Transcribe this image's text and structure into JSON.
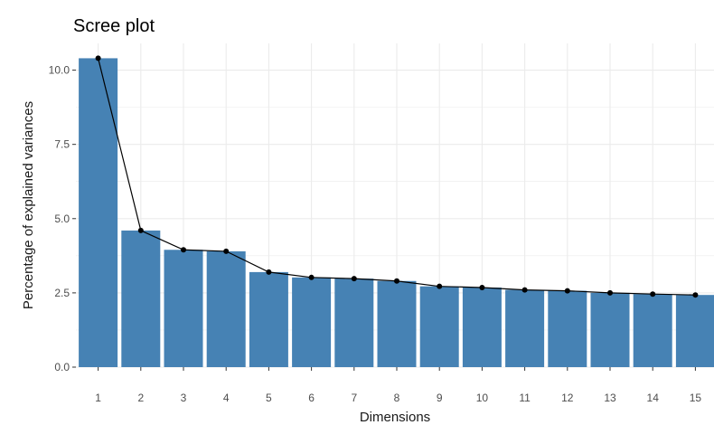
{
  "chart_data": {
    "type": "bar",
    "title": "Scree plot",
    "xlabel": "Dimensions",
    "ylabel": "Percentage of explained variances",
    "categories": [
      "1",
      "2",
      "3",
      "4",
      "5",
      "6",
      "7",
      "8",
      "9",
      "10",
      "11",
      "12",
      "13",
      "14",
      "15"
    ],
    "values": [
      10.4,
      4.6,
      3.95,
      3.9,
      3.2,
      3.02,
      2.98,
      2.9,
      2.72,
      2.68,
      2.6,
      2.57,
      2.5,
      2.46,
      2.43
    ],
    "line_overlay": true,
    "ylim": [
      0,
      10.9
    ],
    "yticks": [
      "0.0",
      "2.5",
      "5.0",
      "7.5",
      "10.0"
    ],
    "ytick_values": [
      0,
      2.5,
      5,
      7.5,
      10
    ],
    "grid": true,
    "colors": {
      "bar": "#4682b4",
      "line": "#000000",
      "grid": "#ebebeb",
      "panel": "#ffffff"
    }
  }
}
